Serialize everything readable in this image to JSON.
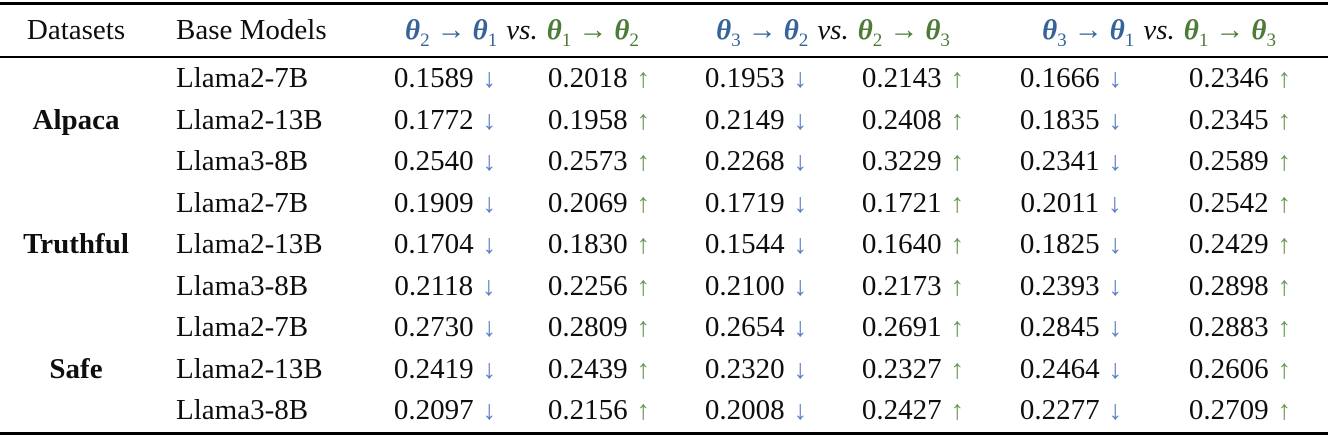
{
  "colors": {
    "header_blue": "#35639a",
    "header_green": "#4d7c39",
    "down_arrow_blue": "#5d80c4",
    "up_arrow_green": "#679955",
    "rule_black": "#000000",
    "text": "#0e0e0e",
    "background": "#ffffff"
  },
  "symbols": {
    "theta": "θ",
    "right_arrow": "→",
    "down_arrow": "↓",
    "up_arrow": "↑",
    "vs": "vs."
  },
  "header": {
    "datasets": "Datasets",
    "base_models": "Base Models",
    "groups": [
      {
        "left_sub_a": "2",
        "left_sub_b": "1",
        "right_sub_a": "1",
        "right_sub_b": "2"
      },
      {
        "left_sub_a": "3",
        "left_sub_b": "2",
        "right_sub_a": "2",
        "right_sub_b": "3"
      },
      {
        "left_sub_a": "3",
        "left_sub_b": "1",
        "right_sub_a": "1",
        "right_sub_b": "3"
      }
    ]
  },
  "body": {
    "datasets": [
      {
        "name": "Alpaca",
        "rows": [
          {
            "model": "Llama2-7B",
            "values": [
              "0.1589",
              "0.2018",
              "0.1953",
              "0.2143",
              "0.1666",
              "0.2346"
            ]
          },
          {
            "model": "Llama2-13B",
            "values": [
              "0.1772",
              "0.1958",
              "0.2149",
              "0.2408",
              "0.1835",
              "0.2345"
            ]
          },
          {
            "model": "Llama3-8B",
            "values": [
              "0.2540",
              "0.2573",
              "0.2268",
              "0.3229",
              "0.2341",
              "0.2589"
            ]
          }
        ]
      },
      {
        "name": "Truthful",
        "rows": [
          {
            "model": "Llama2-7B",
            "values": [
              "0.1909",
              "0.2069",
              "0.1719",
              "0.1721",
              "0.2011",
              "0.2542"
            ]
          },
          {
            "model": "Llama2-13B",
            "values": [
              "0.1704",
              "0.1830",
              "0.1544",
              "0.1640",
              "0.1825",
              "0.2429"
            ]
          },
          {
            "model": "Llama3-8B",
            "values": [
              "0.2118",
              "0.2256",
              "0.2100",
              "0.2173",
              "0.2393",
              "0.2898"
            ]
          }
        ]
      },
      {
        "name": "Safe",
        "rows": [
          {
            "model": "Llama2-7B",
            "values": [
              "0.2730",
              "0.2809",
              "0.2654",
              "0.2691",
              "0.2845",
              "0.2883"
            ]
          },
          {
            "model": "Llama2-13B",
            "values": [
              "0.2419",
              "0.2439",
              "0.2320",
              "0.2327",
              "0.2464",
              "0.2606"
            ]
          },
          {
            "model": "Llama3-8B",
            "values": [
              "0.2097",
              "0.2156",
              "0.2008",
              "0.2427",
              "0.2277",
              "0.2709"
            ]
          }
        ]
      }
    ]
  }
}
